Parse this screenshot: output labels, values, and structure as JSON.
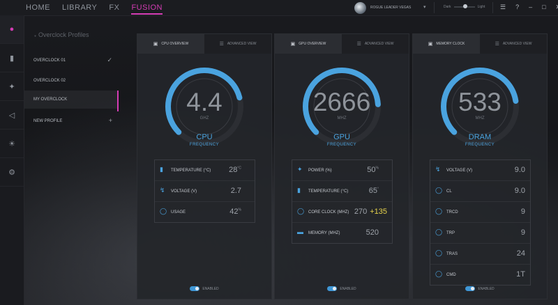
{
  "nav": {
    "items": [
      "HOME",
      "LIBRARY",
      "FX",
      "FUSION"
    ],
    "active": "FUSION"
  },
  "profile": {
    "name": "ROGUE LEADER VEGAS"
  },
  "theme": {
    "dark_label": "Dark",
    "light_label": "Light"
  },
  "rail": {
    "icons": [
      "speedometer-icon",
      "thermometer-icon",
      "power-plug-icon",
      "speaker-icon",
      "brightness-icon",
      "gears-icon"
    ]
  },
  "profiles": {
    "title": "Overclock Profiles",
    "items": [
      {
        "label": "OVERCLOCK 01",
        "mark": "✓"
      },
      {
        "label": "OVERCLOCK 02",
        "mark": ""
      },
      {
        "label": "MY OVERCLOCK",
        "mark": ""
      },
      {
        "label": "NEW PROFILE",
        "mark": "+"
      }
    ]
  },
  "colors": {
    "accent": "#d43cb4",
    "gauge": "#4aa3df",
    "offset": "#e6d34c"
  },
  "cards": [
    {
      "tab_active": "CPU OVERVIEW",
      "tab_other": "ADVANCED VIEW",
      "value": "4.4",
      "unit": "GHZ",
      "label": "CPU",
      "sub": "FREQUENCY",
      "gauge_fraction": 0.78,
      "rows": [
        {
          "icon": "thermometer-icon",
          "name": "TEMPERATURE (°C)",
          "value": "28",
          "unit": "°C"
        },
        {
          "icon": "bolt-icon",
          "name": "VOLTAGE (V)",
          "value": "2.7",
          "unit": ""
        },
        {
          "icon": "gauge-icon",
          "name": "USAGE",
          "value": "42",
          "unit": "%"
        }
      ],
      "toggle": "ENABLED"
    },
    {
      "tab_active": "GPU OVERVIEW",
      "tab_other": "ADVANCED VIEW",
      "value": "2666",
      "unit": "MHZ",
      "label": "GPU",
      "sub": "FREQUENCY",
      "gauge_fraction": 0.82,
      "rows": [
        {
          "icon": "wrench-icon",
          "name": "POWER (%)",
          "value": "50",
          "unit": "%"
        },
        {
          "icon": "thermometer-icon",
          "name": "TEMPERATURE (°C)",
          "value": "65",
          "unit": "°"
        },
        {
          "icon": "gauge-icon",
          "name": "CORE CLOCK (MHz)",
          "value": "270",
          "offset": "+135"
        },
        {
          "icon": "memory-icon",
          "name": "MEMORY (MHz)",
          "value": "520",
          "unit": ""
        }
      ],
      "toggle": "ENABLED"
    },
    {
      "tab_active": "MEMORY CLOCK",
      "tab_other": "ADVANCED VIEW",
      "value": "533",
      "unit": "MHZ",
      "label": "DRAM",
      "sub": "FREQUENCY",
      "gauge_fraction": 0.8,
      "rows": [
        {
          "icon": "bolt-icon",
          "name": "VOLTAGE (V)",
          "value": "9.0"
        },
        {
          "icon": "gauge-icon",
          "name": "CL",
          "value": "9.0"
        },
        {
          "icon": "gauge-icon",
          "name": "tRCD",
          "value": "9"
        },
        {
          "icon": "gauge-icon",
          "name": "tRP",
          "value": "9"
        },
        {
          "icon": "gauge-icon",
          "name": "tRAS",
          "value": "24"
        },
        {
          "icon": "gauge-icon",
          "name": "CMD",
          "value": "1T"
        }
      ],
      "toggle": "ENABLED"
    }
  ]
}
